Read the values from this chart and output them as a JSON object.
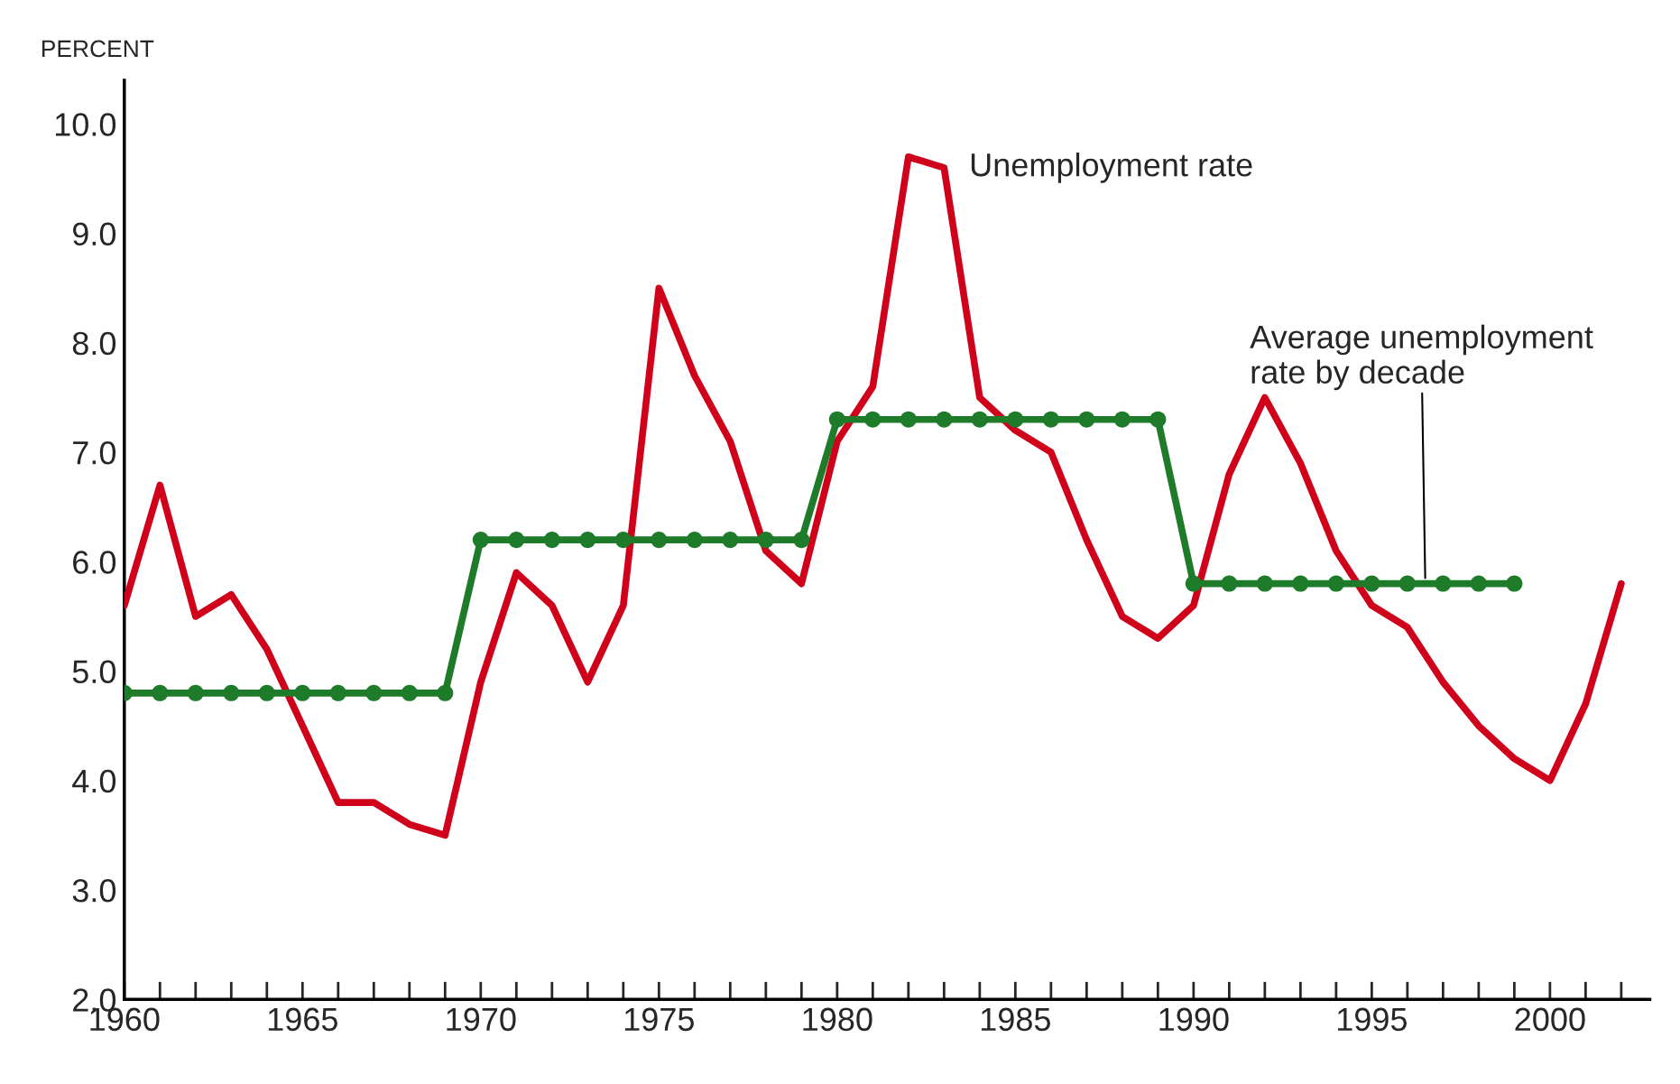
{
  "chart_data": {
    "type": "line",
    "ylabel": "PERCENT",
    "xlim": [
      1960,
      2002.8
    ],
    "ylim": [
      2.0,
      10.4
    ],
    "xticks": [
      1960,
      1965,
      1970,
      1975,
      1980,
      1985,
      1990,
      1995,
      2000
    ],
    "yticks": [
      {
        "value": 2,
        "label": "2.0"
      },
      {
        "value": 3,
        "label": "3.0"
      },
      {
        "value": 4,
        "label": "4.0"
      },
      {
        "value": 5,
        "label": "5.0"
      },
      {
        "value": 6,
        "label": "6.0"
      },
      {
        "value": 7,
        "label": "7.0"
      },
      {
        "value": 8,
        "label": "8.0"
      },
      {
        "value": 9,
        "label": "9.0"
      },
      {
        "value": 10,
        "label": "10.0"
      }
    ],
    "grid": false,
    "legend": false,
    "series": [
      {
        "color": "#d0021b",
        "marker": "none",
        "x": [
          1960,
          1961,
          1962,
          1963,
          1964,
          1965,
          1966,
          1967,
          1968,
          1969,
          1970,
          1971,
          1972,
          1973,
          1974,
          1975,
          1976,
          1977,
          1978,
          1979,
          1980,
          1981,
          1982,
          1983,
          1984,
          1985,
          1986,
          1987,
          1988,
          1989,
          1990,
          1991,
          1992,
          1993,
          1994,
          1995,
          1996,
          1997,
          1998,
          1999,
          2000,
          2001,
          2002
        ],
        "values": [
          5.6,
          6.7,
          5.5,
          5.7,
          5.2,
          4.5,
          3.8,
          3.8,
          3.6,
          3.5,
          4.9,
          5.9,
          5.6,
          4.9,
          5.6,
          8.5,
          7.7,
          7.1,
          6.1,
          5.8,
          7.1,
          7.6,
          9.7,
          9.6,
          7.5,
          7.2,
          7.0,
          6.2,
          5.5,
          5.3,
          5.6,
          6.8,
          7.5,
          6.9,
          6.1,
          5.6,
          5.4,
          4.9,
          4.5,
          4.2,
          4.0,
          4.7,
          5.8
        ]
      },
      {
        "color": "#1e7b2a",
        "marker": "circle",
        "x": [
          1960,
          1961,
          1962,
          1963,
          1964,
          1965,
          1966,
          1967,
          1968,
          1969,
          1970,
          1971,
          1972,
          1973,
          1974,
          1975,
          1976,
          1977,
          1978,
          1979,
          1980,
          1981,
          1982,
          1983,
          1984,
          1985,
          1986,
          1987,
          1988,
          1989,
          1990,
          1991,
          1992,
          1993,
          1994,
          1995,
          1996,
          1997,
          1998,
          1999
        ],
        "values": [
          4.8,
          4.8,
          4.8,
          4.8,
          4.8,
          4.8,
          4.8,
          4.8,
          4.8,
          4.8,
          6.2,
          6.2,
          6.2,
          6.2,
          6.2,
          6.2,
          6.2,
          6.2,
          6.2,
          6.2,
          7.3,
          7.3,
          7.3,
          7.3,
          7.3,
          7.3,
          7.3,
          7.3,
          7.3,
          7.3,
          5.8,
          5.8,
          5.8,
          5.8,
          5.8,
          5.8,
          5.8,
          5.8,
          5.8,
          5.8
        ]
      }
    ],
    "annotations": [
      {
        "text": "Unemployment rate",
        "x": 1983,
        "y": 9.6
      },
      {
        "text": "Average unemployment\nrate by decade",
        "x": 1996.5,
        "y": 5.85
      }
    ]
  }
}
